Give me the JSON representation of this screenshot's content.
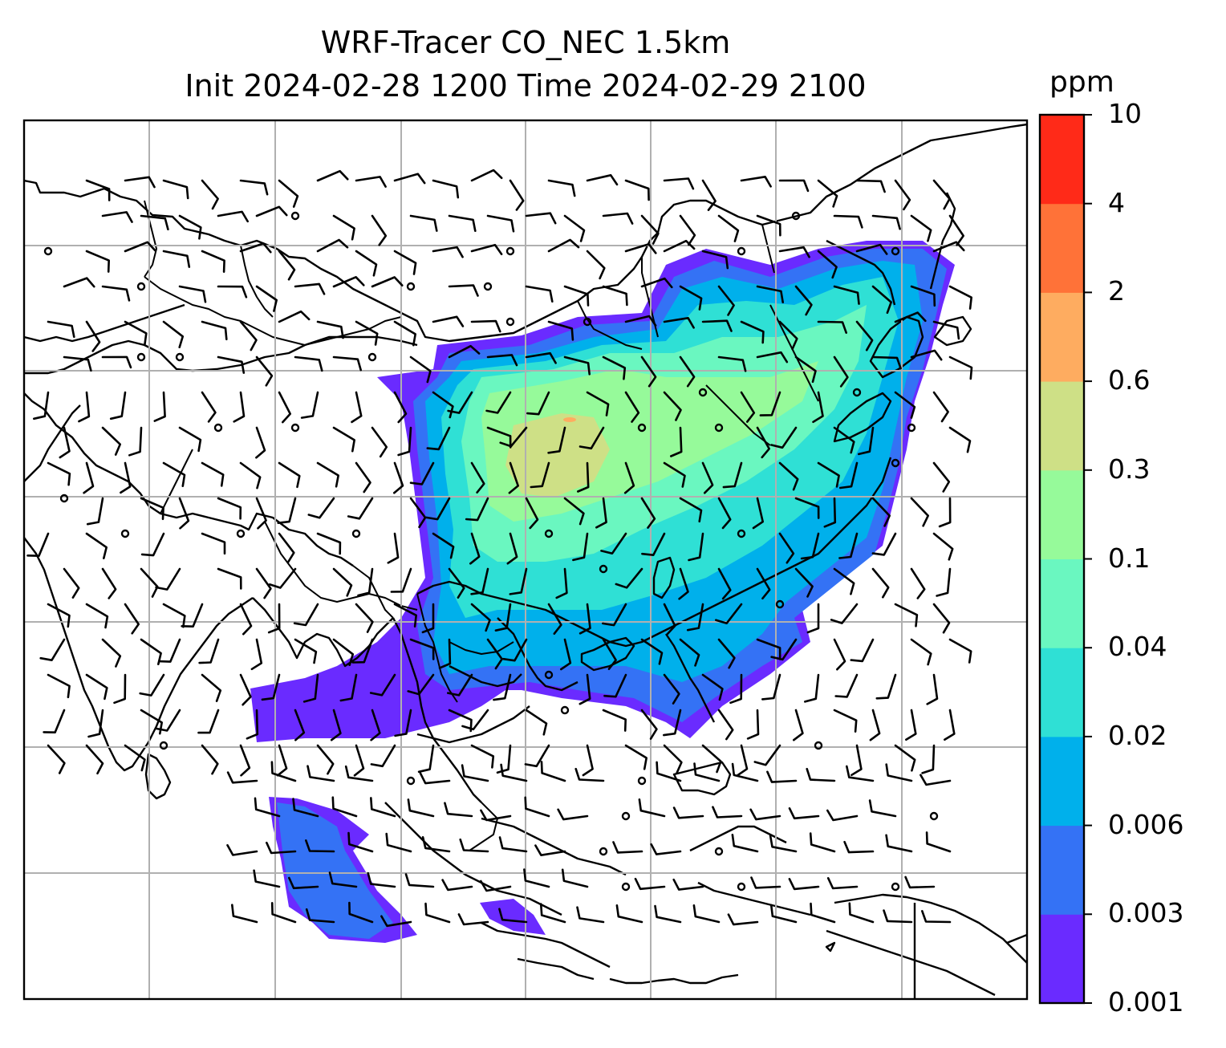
{
  "title": {
    "line1": "WRF-Tracer CO_NEC 1.5km",
    "line2": "Init 2024-02-28 1200 Time 2024-02-29 2100"
  },
  "colorbar": {
    "unit": "ppm",
    "levels": [
      "0.001",
      "0.003",
      "0.006",
      "0.02",
      "0.04",
      "0.1",
      "0.3",
      "0.6",
      "2",
      "4",
      "10"
    ],
    "colors": [
      "#6a2bff",
      "#3472f5",
      "#00b0eb",
      "#2fe0d5",
      "#6af7c0",
      "#96fa9a",
      "#cee086",
      "#feac60",
      "#ff7238",
      "#ff2a18"
    ]
  },
  "map": {
    "gridlines": true,
    "layers": [
      "coastlines",
      "country-borders",
      "co-tracer-concentration",
      "wind-barbs"
    ]
  }
}
